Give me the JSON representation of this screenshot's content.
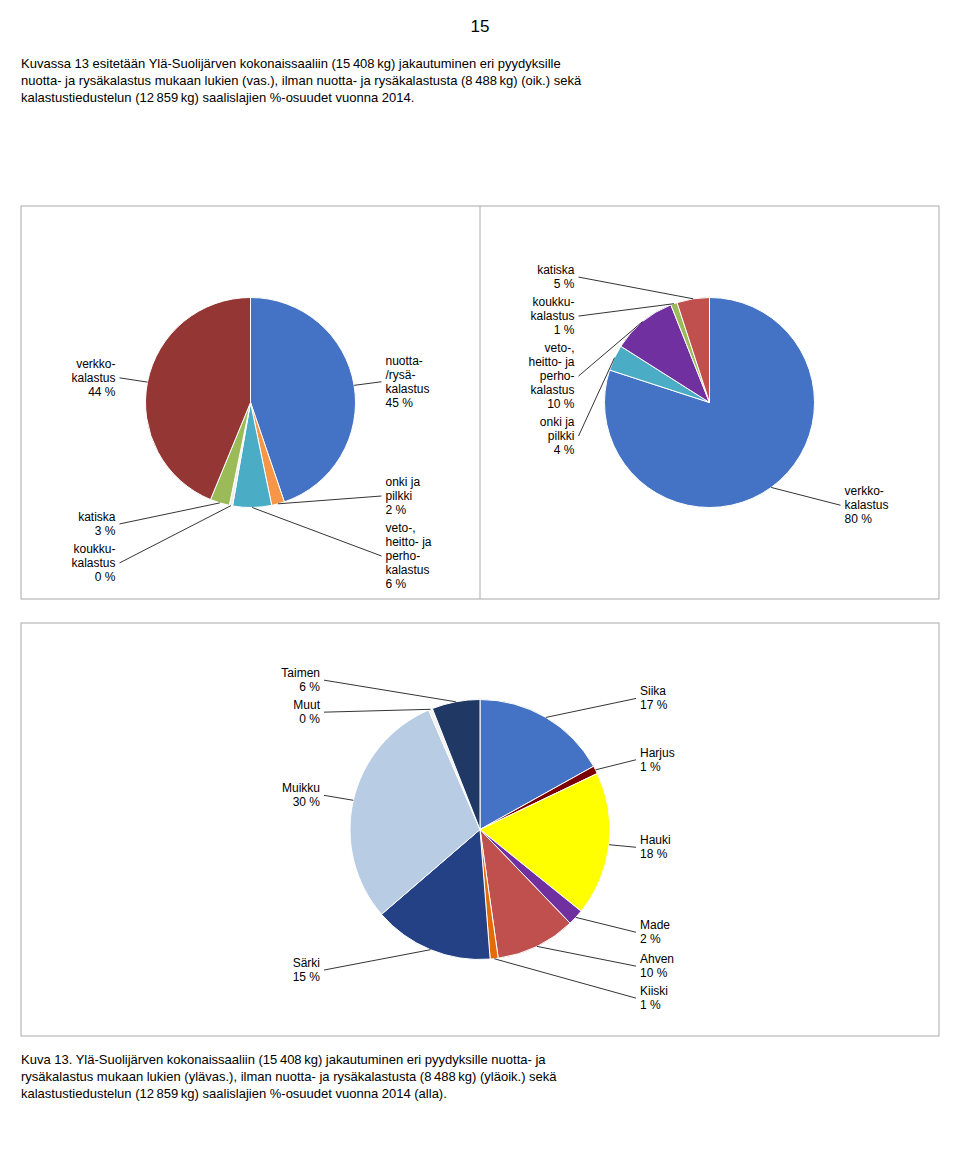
{
  "page_number": "15",
  "header": "Kuvassa 13 esitetään Ylä-Suolijärven kokonaissaaliin (15 408 kg) jakautuminen eri pyydyksille\nnuotta- ja rysäkalastus mukaan lukien (vas.), ilman nuotta- ja rysäkalastusta (8 488 kg) (oik.) sekä\nkalastustiedustelun (12 859 kg) saalislajien %-osuudet vuonna 2014.",
  "footer": "Kuva 13. Ylä-Suolijärven kokonaissaaliin (15 408 kg) jakautuminen eri pyydyksille nuotta- ja\nrysäkalastus mukaan lukien (ylävas.), ilman nuotta- ja rysäkalastusta (8 488 kg) (yläoik.) sekä\nkalastustiedustelun (12 859 kg) saalislajien %-osuudet vuonna 2014 (alla).",
  "chart_data": [
    {
      "type": "pie",
      "categories": [
        "nuotta-\n/rysä-\nkalastus",
        "onki ja\npilkki",
        "veto-,\nheitto- ja\nperho-\nkalastus",
        "koukku-\nkalastus",
        "katiska",
        "verkko-\nkalastus"
      ],
      "values": [
        45,
        2,
        6,
        0.5,
        3,
        44
      ],
      "value_labels": [
        "45 %",
        "2 %",
        "6 %",
        "0 %",
        "3 %",
        "44 %"
      ],
      "colors": [
        "#4472C4",
        "#F79646",
        "#4BACC6",
        "#EEEEEE",
        "#9BBB59",
        "#943634"
      ],
      "data_labels": true
    },
    {
      "type": "pie",
      "categories": [
        "verkko-\nkalastus",
        "onki ja\npilkki",
        "veto-,\nheitto- ja\nperho-\nkalastus",
        "koukku-\nkalastus",
        "katiska"
      ],
      "values": [
        80,
        4,
        10,
        1,
        5
      ],
      "value_labels": [
        "80 %",
        "4 %",
        "10 %",
        "1 %",
        "5 %"
      ],
      "colors": [
        "#4472C4",
        "#4BACC6",
        "#7030A0",
        "#9BBB59",
        "#C0504D"
      ],
      "data_labels": true
    },
    {
      "type": "pie",
      "categories": [
        "Siika",
        "Harjus",
        "Hauki",
        "Made",
        "Ahven",
        "Kiiski",
        "Särki",
        "Muikku",
        "Muut",
        "Taimen"
      ],
      "values": [
        17,
        1,
        18,
        2,
        10,
        1,
        15,
        30,
        0.5,
        6
      ],
      "value_labels": [
        "17 %",
        "1 %",
        "18 %",
        "2 %",
        "10 %",
        "1 %",
        "15 %",
        "30 %",
        "0 %",
        "6 %"
      ],
      "colors": [
        "#4472C4",
        "#7B0000",
        "#FFFF00",
        "#7030A0",
        "#C0504D",
        "#E36C09",
        "#244185",
        "#B8CCE4",
        "#F2F2F2",
        "#1F3864"
      ],
      "data_labels": true
    }
  ]
}
